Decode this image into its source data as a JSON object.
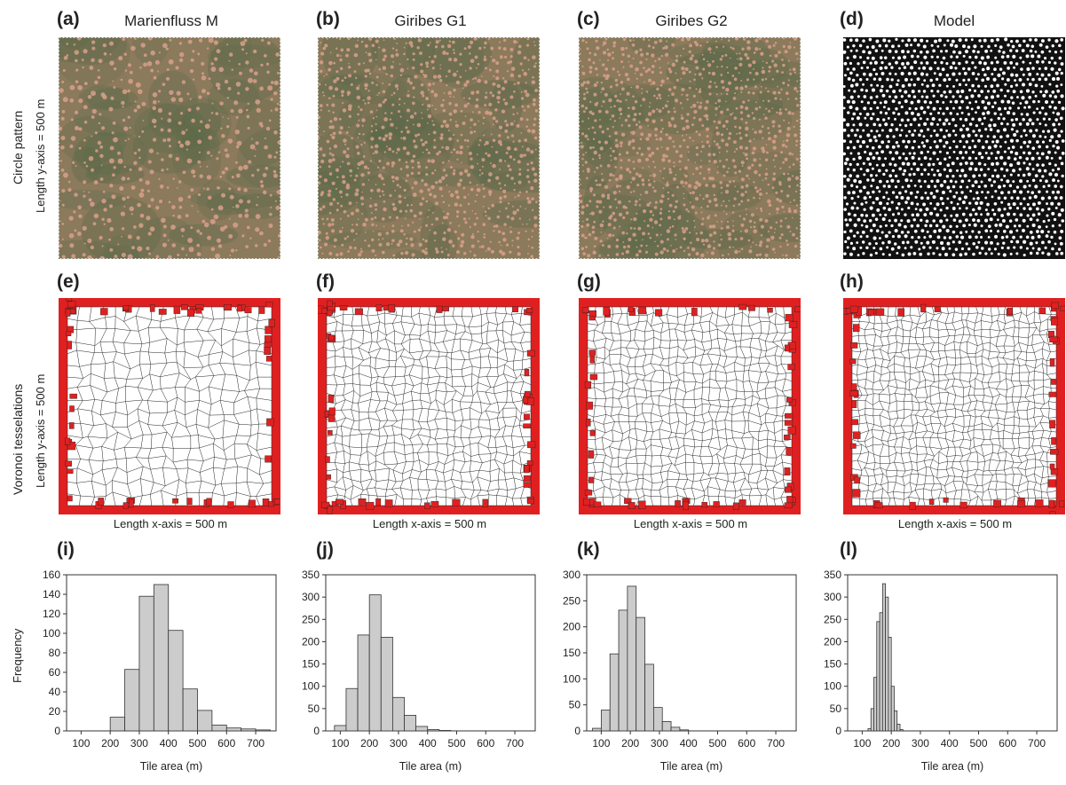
{
  "row_labels": {
    "circle": "Circle pattern",
    "voronoi": "Voronoi tesselations",
    "frequency": "Frequency"
  },
  "y_axis_length": "Length y-axis = 500 m",
  "x_axis_length": "Length x-axis = 500 m",
  "panels": {
    "a": {
      "letter": "(a)",
      "title": "Marienfluss M"
    },
    "b": {
      "letter": "(b)",
      "title": "Giribes G1"
    },
    "c": {
      "letter": "(c)",
      "title": "Giribes G2"
    },
    "d": {
      "letter": "(d)",
      "title": "Model"
    },
    "e": {
      "letter": "(e)"
    },
    "f": {
      "letter": "(f)"
    },
    "g": {
      "letter": "(g)"
    },
    "h": {
      "letter": "(h)"
    },
    "i": {
      "letter": "(i)"
    },
    "j": {
      "letter": "(j)"
    },
    "k": {
      "letter": "(k)"
    },
    "l": {
      "letter": "(l)"
    }
  },
  "colors": {
    "aerial_base": "#8b7a5c",
    "aerial_green": "#5c6a4a",
    "circle_pink": "#d9a08a",
    "model_bg": "#111111",
    "model_dot": "#ffffff",
    "voronoi_edge": "#e02020",
    "bar_fill": "#cccccc",
    "bar_stroke": "#333333"
  },
  "chart_data": [
    {
      "type": "bar",
      "panel": "(i)",
      "xlabel": "Tile area (m)",
      "ylabel": "Frequency",
      "xlim": [
        50,
        770
      ],
      "ylim": [
        0,
        160
      ],
      "xticks": [
        100,
        200,
        300,
        400,
        500,
        600,
        700
      ],
      "yticks": [
        0,
        20,
        40,
        60,
        80,
        100,
        120,
        140,
        160
      ],
      "bin_width": 50,
      "bin_starts": [
        200,
        250,
        300,
        350,
        400,
        450,
        500,
        550,
        600,
        650,
        700
      ],
      "values": [
        14,
        63,
        138,
        150,
        103,
        43,
        21,
        6,
        3,
        2,
        1
      ]
    },
    {
      "type": "bar",
      "panel": "(j)",
      "xlabel": "Tile area (m)",
      "ylabel": "",
      "xlim": [
        50,
        770
      ],
      "ylim": [
        0,
        350
      ],
      "xticks": [
        100,
        200,
        300,
        400,
        500,
        600,
        700
      ],
      "yticks": [
        0,
        50,
        100,
        150,
        200,
        250,
        300,
        350
      ],
      "bin_width": 40,
      "bin_starts": [
        80,
        120,
        160,
        200,
        240,
        280,
        320,
        360,
        400,
        440
      ],
      "values": [
        12,
        95,
        215,
        305,
        210,
        75,
        35,
        10,
        3,
        1
      ]
    },
    {
      "type": "bar",
      "panel": "(k)",
      "xlabel": "Tile area (m)",
      "ylabel": "",
      "xlim": [
        50,
        770
      ],
      "ylim": [
        0,
        300
      ],
      "xticks": [
        100,
        200,
        300,
        400,
        500,
        600,
        700
      ],
      "yticks": [
        0,
        50,
        100,
        150,
        200,
        250,
        300
      ],
      "bin_width": 30,
      "bin_starts": [
        70,
        100,
        130,
        160,
        190,
        220,
        250,
        280,
        310,
        340,
        370
      ],
      "values": [
        5,
        40,
        148,
        232,
        278,
        218,
        128,
        45,
        18,
        7,
        2
      ]
    },
    {
      "type": "bar",
      "panel": "(l)",
      "xlabel": "Tile area (m)",
      "ylabel": "",
      "xlim": [
        50,
        770
      ],
      "ylim": [
        0,
        350
      ],
      "xticks": [
        100,
        200,
        300,
        400,
        500,
        600,
        700
      ],
      "yticks": [
        0,
        50,
        100,
        150,
        200,
        250,
        300,
        350
      ],
      "bin_width": 10,
      "bin_starts": [
        120,
        130,
        140,
        150,
        160,
        170,
        180,
        190,
        200,
        210,
        220,
        230
      ],
      "values": [
        5,
        50,
        120,
        245,
        265,
        330,
        300,
        210,
        100,
        45,
        15,
        3
      ]
    }
  ]
}
